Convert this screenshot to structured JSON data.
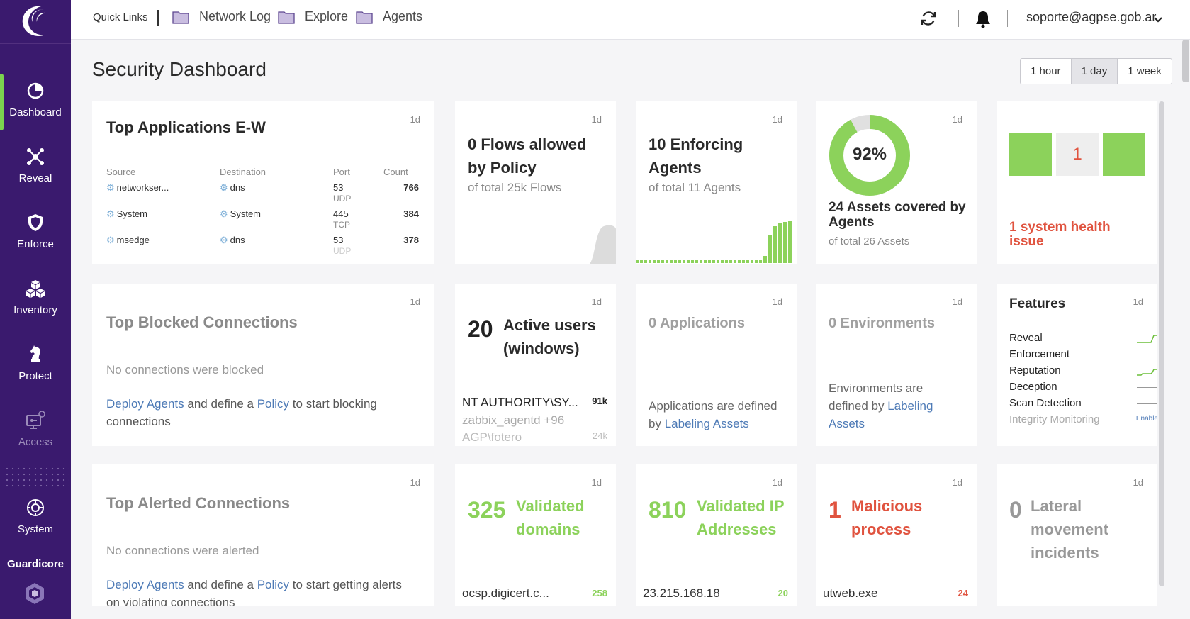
{
  "sidebar": {
    "items": [
      {
        "label": "Dashboard",
        "icon": "pie-chart-icon"
      },
      {
        "label": "Reveal",
        "icon": "network-icon"
      },
      {
        "label": "Enforce",
        "icon": "shield-icon"
      },
      {
        "label": "Inventory",
        "icon": "cubes-icon"
      },
      {
        "label": "Protect",
        "icon": "chess-knight-icon"
      },
      {
        "label": "Access",
        "icon": "access-monitor-icon"
      },
      {
        "label": "System",
        "icon": "system-gear-icon"
      }
    ],
    "brand": "Guardicore"
  },
  "topbar": {
    "quick_links_label": "Quick Links",
    "links": [
      "Network Log",
      "Explore",
      "Agents"
    ],
    "user": "soporte@agpse.gob.ar"
  },
  "header": {
    "title": "Security Dashboard",
    "ranges": [
      "1 hour",
      "1 day",
      "1 week"
    ],
    "selected_range": "1 day"
  },
  "cards": {
    "top_apps": {
      "title": "Top Applications E-W",
      "tag": "1d",
      "columns": [
        "Source",
        "Destination",
        "Port",
        "Count"
      ],
      "rows": [
        {
          "source": "networkser...",
          "destination": "dns",
          "port": "53",
          "proto": "UDP",
          "count": "766"
        },
        {
          "source": "System",
          "destination": "System",
          "port": "445",
          "proto": "TCP",
          "count": "384"
        },
        {
          "source": "msedge",
          "destination": "dns",
          "port": "53",
          "proto": "UDP",
          "count": "378"
        }
      ]
    },
    "flows": {
      "tag": "1d",
      "title": "0 Flows allowed by Policy",
      "sub": "of total 25k Flows"
    },
    "agents": {
      "tag": "1d",
      "title": "10 Enforcing Agents",
      "sub": "of total 11 Agents"
    },
    "assets": {
      "tag": "1d",
      "percent": "92%",
      "percent_value": 0.92,
      "title": "24 Assets covered by Agents",
      "sub": "of total 26 Assets"
    },
    "health": {
      "tag": "1d",
      "count": "1",
      "text": "1 system health issue"
    },
    "blocked": {
      "title": "Top Blocked Connections",
      "tag": "1d",
      "empty": "No connections were blocked",
      "deploy": "Deploy Agents",
      "mid": "and define a",
      "policy": "Policy",
      "rest": "to start blocking connections"
    },
    "users": {
      "tag": "1d",
      "count": "20",
      "title": "Active users (windows)",
      "rows": [
        {
          "name": "NT AUTHORITY\\SY...",
          "value": "91k"
        },
        {
          "name": "zabbix_agentd +96",
          "value": ""
        },
        {
          "name": "AGP\\fotero",
          "value": "24k"
        }
      ]
    },
    "applications": {
      "tag": "1d",
      "title": "0 Applications",
      "text": "Applications are defined by",
      "link": "Labeling Assets"
    },
    "environments": {
      "tag": "1d",
      "title": "0 Environments",
      "text": "Environments are defined by",
      "link": "Labeling Assets"
    },
    "features": {
      "title": "Features",
      "tag": "1d",
      "items": [
        {
          "name": "Reveal",
          "state": "green-up"
        },
        {
          "name": "Enforcement",
          "state": "flat"
        },
        {
          "name": "Reputation",
          "state": "green-up"
        },
        {
          "name": "Deception",
          "state": "flat"
        },
        {
          "name": "Scan Detection",
          "state": "flat"
        },
        {
          "name": "Integrity Monitoring",
          "state": "enable"
        }
      ],
      "enable_label": "Enable"
    },
    "alerted": {
      "title": "Top Alerted Connections",
      "tag": "1d",
      "empty": "No connections were alerted",
      "deploy": "Deploy Agents",
      "mid": "and define a",
      "policy": "Policy",
      "rest": "to start getting alerts on violating connections"
    },
    "domains": {
      "tag": "1d",
      "count": "325",
      "title": "Validated domains",
      "item": "ocsp.digicert.c...",
      "item_value": "258"
    },
    "ips": {
      "tag": "1d",
      "count": "810",
      "title": "Validated IP Addresses",
      "item": "23.215.168.18",
      "item_value": "20"
    },
    "malicious": {
      "tag": "1d",
      "count": "1",
      "title": "Malicious process",
      "item": "utweb.exe",
      "item_value": "24"
    },
    "lateral": {
      "tag": "1d",
      "count": "0",
      "title": "Lateral movement incidents"
    }
  },
  "colors": {
    "sidebar": "#3a1a6e",
    "green": "#8cd25b",
    "red": "#e0533f",
    "link": "#4d7ab6"
  }
}
